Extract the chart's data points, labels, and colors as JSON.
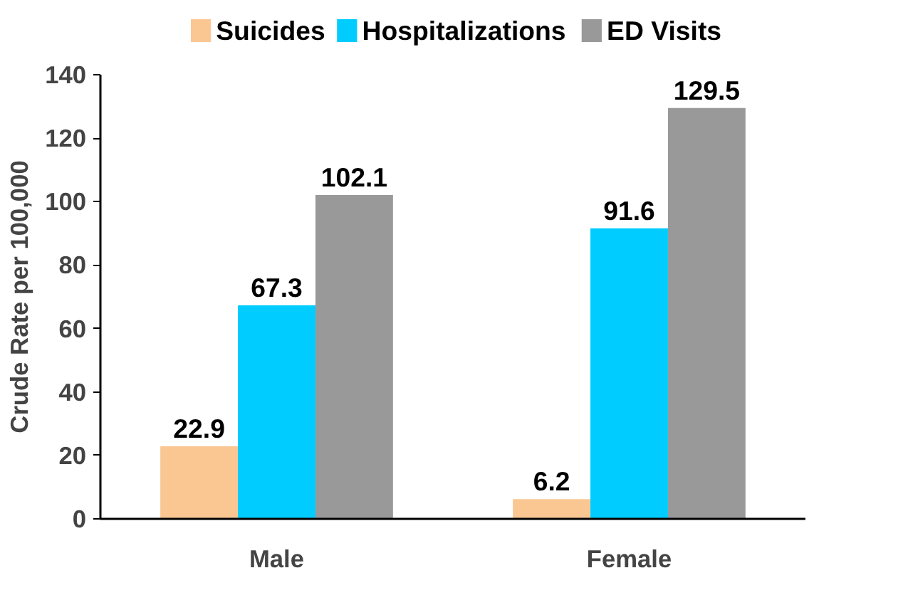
{
  "chart_data": {
    "type": "bar",
    "categories": [
      "Male",
      "Female"
    ],
    "ylabel": "Crude Rate per 100,000",
    "series": [
      {
        "name": "Suicides",
        "color": "#fac792",
        "values": [
          22.9,
          6.2
        ]
      },
      {
        "name": "Hospitalizations",
        "color": "#00ccff",
        "values": [
          67.3,
          91.6
        ]
      },
      {
        "name": "ED Visits",
        "color": "#999999",
        "values": [
          102.1,
          129.5
        ]
      }
    ],
    "ylim": [
      0,
      140
    ],
    "yticks": [
      0,
      20,
      40,
      60,
      80,
      100,
      120,
      140
    ],
    "grid": false,
    "legend": "top",
    "data_labels": true
  }
}
